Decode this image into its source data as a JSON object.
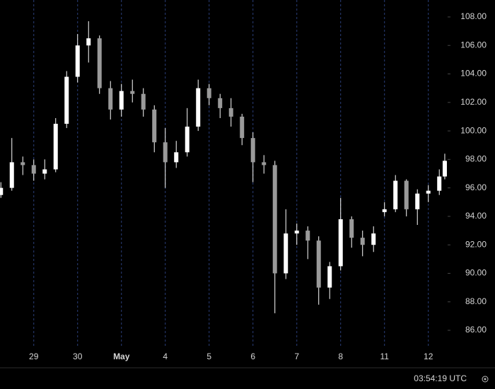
{
  "chart_data": {
    "type": "candlestick",
    "color": "#ffffff",
    "grid": "x",
    "grid_color": "#2a3f7a",
    "x": [
      -0.75,
      -0.5,
      -0.25,
      0,
      0.25,
      0.5,
      0.75,
      1,
      1.25,
      1.5,
      1.75,
      2,
      2.25,
      2.5,
      2.75,
      3,
      3.25,
      3.5,
      3.75,
      4,
      4.25,
      4.5,
      4.75,
      5,
      5.25,
      5.5,
      5.75,
      6,
      6.25,
      6.5,
      6.75,
      7,
      7.25,
      7.5,
      7.75,
      8,
      8.25,
      8.5,
      8.75,
      9,
      9.25,
      9.375
    ],
    "open": [
      95.5,
      96.0,
      97.8,
      97.6,
      97.0,
      97.3,
      100.5,
      103.8,
      106.0,
      106.5,
      103.0,
      101.5,
      102.8,
      102.6,
      101.5,
      99.2,
      97.8,
      98.5,
      100.3,
      103.0,
      102.3,
      101.6,
      101.0,
      99.5,
      97.8,
      97.6,
      90.0,
      92.8,
      93.0,
      92.3,
      89.0,
      90.5,
      93.8,
      92.5,
      92.0,
      94.3,
      94.5,
      96.5,
      94.5,
      95.6,
      95.8,
      96.8
    ],
    "high": [
      96.4,
      99.5,
      98.2,
      98.0,
      98.0,
      100.9,
      104.2,
      106.8,
      107.7,
      106.7,
      103.5,
      103.3,
      103.6,
      103.0,
      101.8,
      100.2,
      99.3,
      101.6,
      103.6,
      103.3,
      102.6,
      102.3,
      101.2,
      99.9,
      98.3,
      97.9,
      94.5,
      93.5,
      93.3,
      92.6,
      90.8,
      95.3,
      94.0,
      93.0,
      93.3,
      95.0,
      96.9,
      96.6,
      95.9,
      96.2,
      97.3,
      98.4
    ],
    "low": [
      95.3,
      95.8,
      96.9,
      96.5,
      96.6,
      97.1,
      100.2,
      103.4,
      104.8,
      102.6,
      100.8,
      101.0,
      102.0,
      101.0,
      98.5,
      96.0,
      97.4,
      98.2,
      100.0,
      101.8,
      100.9,
      100.3,
      99.0,
      96.4,
      97.0,
      87.2,
      89.6,
      92.0,
      91.0,
      87.8,
      88.2,
      90.2,
      91.8,
      91.2,
      91.5,
      94.0,
      94.3,
      94.0,
      93.4,
      95.0,
      95.5,
      96.6
    ],
    "close": [
      96.0,
      97.8,
      97.6,
      97.0,
      97.3,
      100.5,
      103.8,
      106.0,
      106.5,
      103.0,
      101.5,
      102.8,
      102.6,
      101.5,
      99.2,
      97.8,
      98.5,
      100.3,
      103.0,
      102.3,
      101.6,
      101.0,
      99.5,
      97.8,
      97.6,
      90.0,
      92.8,
      93.0,
      92.3,
      89.0,
      90.5,
      93.8,
      92.5,
      92.0,
      92.8,
      94.5,
      96.5,
      94.5,
      95.6,
      95.8,
      96.8,
      97.9
    ],
    "xlim": [
      -0.77,
      9.44
    ],
    "xticks": [
      {
        "value": 0,
        "label": "29"
      },
      {
        "value": 1,
        "label": "30"
      },
      {
        "value": 2,
        "label": "May"
      },
      {
        "value": 3,
        "label": "4"
      },
      {
        "value": 4,
        "label": "5"
      },
      {
        "value": 5,
        "label": "6"
      },
      {
        "value": 6,
        "label": "7"
      },
      {
        "value": 7,
        "label": "8"
      },
      {
        "value": 8,
        "label": "11"
      },
      {
        "value": 9,
        "label": "12"
      }
    ],
    "ylim": [
      84.86,
      109.19
    ],
    "yticks": [
      {
        "value": 86,
        "label": "86.00"
      },
      {
        "value": 88,
        "label": "88.00"
      },
      {
        "value": 90,
        "label": "90.00"
      },
      {
        "value": 92,
        "label": "92.00"
      },
      {
        "value": 94,
        "label": "94.00"
      },
      {
        "value": 96,
        "label": "96.00"
      },
      {
        "value": 98,
        "label": "98.00"
      },
      {
        "value": 100,
        "label": "100.00"
      },
      {
        "value": 102,
        "label": "102.00"
      },
      {
        "value": 104,
        "label": "104.00"
      },
      {
        "value": 106,
        "label": "106.00"
      },
      {
        "value": 108,
        "label": "108.00"
      }
    ]
  },
  "footer": {
    "time": "03:54:19 UTC"
  }
}
